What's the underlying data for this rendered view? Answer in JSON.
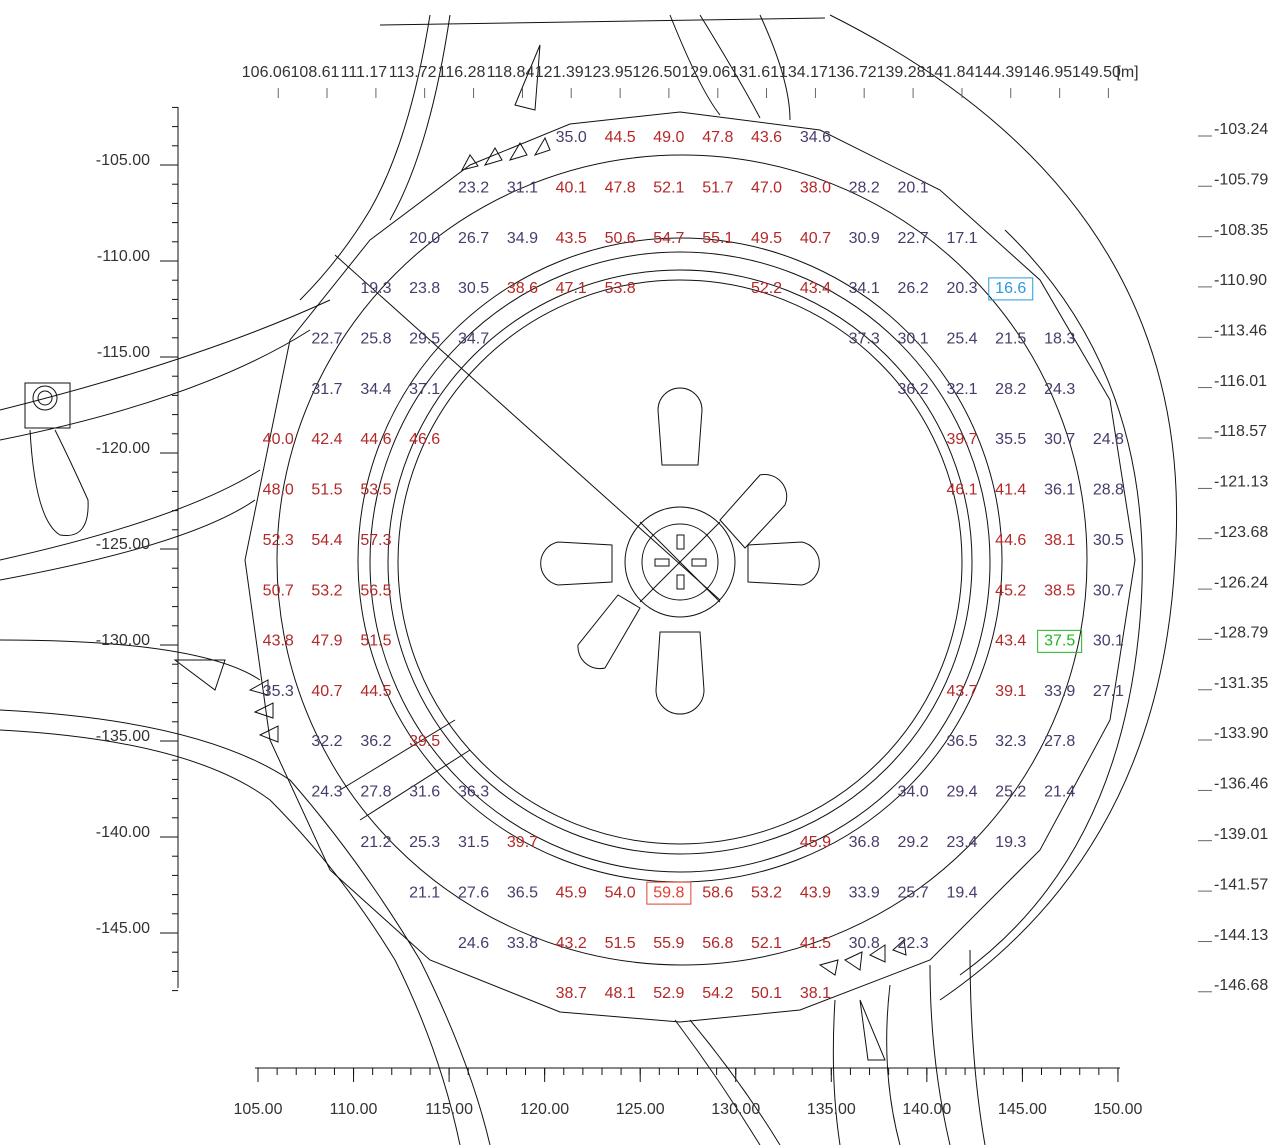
{
  "x_axis_top": {
    "ticks": [
      106.06,
      108.61,
      111.17,
      113.72,
      116.28,
      118.84,
      121.39,
      123.95,
      {
        "value": 126.5,
        "label": "126.50"
      },
      129.06,
      131.61,
      134.17,
      136.72,
      139.28,
      141.84,
      144.39,
      146.95,
      {
        "value": 149.5,
        "label": "149.50"
      }
    ],
    "unit": "[m]"
  },
  "y_axis_right": {
    "ticks": [
      -103.24,
      -105.79,
      -108.35,
      {
        "value": -110.9,
        "label": "-110.90"
      },
      -113.46,
      -116.01,
      -118.57,
      -121.13,
      -123.68,
      -126.24,
      -128.79,
      -131.35,
      {
        "value": -133.9,
        "label": "-133.90"
      },
      -136.46,
      -139.01,
      -141.57,
      -144.13,
      -146.68
    ]
  },
  "x_axis_bottom": {
    "ticks": [
      {
        "value": 105,
        "label": "105.00"
      },
      {
        "value": 110,
        "label": "110.00"
      },
      {
        "value": 115,
        "label": "115.00"
      },
      {
        "value": 120,
        "label": "120.00"
      },
      {
        "value": 125,
        "label": "125.00"
      },
      {
        "value": 130,
        "label": "130.00"
      },
      {
        "value": 135,
        "label": "135.00"
      },
      {
        "value": 140,
        "label": "140.00"
      },
      {
        "value": 145,
        "label": "145.00"
      },
      {
        "value": 150,
        "label": "150.00"
      }
    ]
  },
  "y_axis_left": {
    "ticks": [
      {
        "value": -105,
        "label": "-105.00"
      },
      {
        "value": -110,
        "label": "-110.00"
      },
      {
        "value": -115,
        "label": "-115.00"
      },
      {
        "value": -120,
        "label": "-120.00"
      },
      {
        "value": -125,
        "label": "-125.00"
      },
      {
        "value": -130,
        "label": "-130.00"
      },
      {
        "value": -135,
        "label": "-135.00"
      },
      {
        "value": -140,
        "label": "-140.00"
      },
      {
        "value": -145,
        "label": "-145.00"
      }
    ]
  },
  "grid": {
    "color_low": "#4a3b6b",
    "color_high": "#b52828",
    "high_from": 38,
    "rows": [
      [
        null,
        null,
        null,
        null,
        null,
        null,
        "35.0",
        "44.5",
        "49.0",
        "47.8",
        "43.6",
        "34.6",
        null,
        null,
        null,
        null,
        null,
        null
      ],
      [
        null,
        null,
        null,
        null,
        "23.2",
        "31.1",
        "40.1",
        "47.8",
        "52.1",
        "51.7",
        "47.0",
        "38.0",
        "28.2",
        "20.1",
        null,
        null,
        null,
        null
      ],
      [
        null,
        null,
        null,
        "20.0",
        "26.7",
        "34.9",
        "43.5",
        "50.6",
        "54.7",
        "55.1",
        "49.5",
        "40.7",
        "30.9",
        "22.7",
        "17.1",
        null,
        null,
        null
      ],
      [
        null,
        null,
        "19.3",
        "23.8",
        "30.5",
        "38.6",
        "47.1",
        "53.8",
        null,
        null,
        "52.2",
        "43.4",
        "34.1",
        "26.2",
        "20.3",
        {
          "text": "16.6",
          "box": "#2a9ad8"
        },
        null,
        null
      ],
      [
        null,
        "22.7",
        "25.8",
        "29.5",
        "34.7",
        null,
        null,
        null,
        null,
        null,
        null,
        null,
        "37.3",
        "30.1",
        "25.4",
        "21.5",
        "18.3",
        null
      ],
      [
        null,
        "31.7",
        "34.4",
        "37.1",
        null,
        null,
        null,
        null,
        null,
        null,
        null,
        null,
        null,
        "36.2",
        "32.1",
        "28.2",
        "24.3",
        null
      ],
      [
        "40.0",
        "42.4",
        "44.6",
        "46.6",
        null,
        null,
        null,
        null,
        null,
        null,
        null,
        null,
        null,
        null,
        "39.7",
        "35.5",
        "30.7",
        "24.8"
      ],
      [
        "48.0",
        "51.5",
        "53.5",
        null,
        null,
        null,
        null,
        null,
        null,
        null,
        null,
        null,
        null,
        null,
        "46.1",
        "41.4",
        "36.1",
        "28.8"
      ],
      [
        "52.3",
        "54.4",
        "57.3",
        null,
        null,
        null,
        null,
        null,
        null,
        null,
        null,
        null,
        null,
        null,
        null,
        "44.6",
        "38.1",
        "30.5"
      ],
      [
        "50.7",
        "53.2",
        "56.5",
        null,
        null,
        null,
        null,
        null,
        null,
        null,
        null,
        null,
        null,
        null,
        null,
        "45.2",
        "38.5",
        "30.7"
      ],
      [
        "43.8",
        "47.9",
        "51.5",
        null,
        null,
        null,
        null,
        null,
        null,
        null,
        null,
        null,
        null,
        null,
        null,
        "43.4",
        {
          "text": "37.5",
          "box": "#22b522"
        },
        "30.1"
      ],
      [
        "35.3",
        "40.7",
        "44.5",
        null,
        null,
        null,
        null,
        null,
        null,
        null,
        null,
        null,
        null,
        null,
        "43.7",
        "39.1",
        "33.9",
        "27.1"
      ],
      [
        null,
        "32.2",
        "36.2",
        "39.5",
        null,
        null,
        null,
        null,
        null,
        null,
        null,
        null,
        null,
        null,
        "36.5",
        "32.3",
        "27.8",
        null
      ],
      [
        null,
        "24.3",
        "27.8",
        "31.6",
        "36.3",
        null,
        null,
        null,
        null,
        null,
        null,
        null,
        null,
        "34.0",
        "29.4",
        "25.2",
        "21.4",
        null
      ],
      [
        null,
        null,
        "21.2",
        "25.3",
        "31.5",
        "39.7",
        null,
        null,
        null,
        null,
        null,
        "45.9",
        "36.8",
        "29.2",
        "23.4",
        "19.3",
        null,
        null
      ],
      [
        null,
        null,
        null,
        "21.1",
        "27.6",
        "36.5",
        "45.9",
        "54.0",
        {
          "text": "59.8",
          "box": "#e04030"
        },
        "58.6",
        "53.2",
        "43.9",
        "33.9",
        "25.7",
        "19.4",
        null,
        null,
        null
      ],
      [
        null,
        null,
        null,
        null,
        "24.6",
        "33.8",
        "43.2",
        "51.5",
        "55.9",
        "56.8",
        "52.1",
        "41.5",
        "30.8",
        "22.3",
        null,
        null,
        null,
        null
      ],
      [
        null,
        null,
        null,
        null,
        null,
        null,
        "38.7",
        "48.1",
        "52.9",
        "54.2",
        "50.1",
        "38.1",
        null,
        null,
        null,
        null,
        null,
        null
      ]
    ]
  }
}
